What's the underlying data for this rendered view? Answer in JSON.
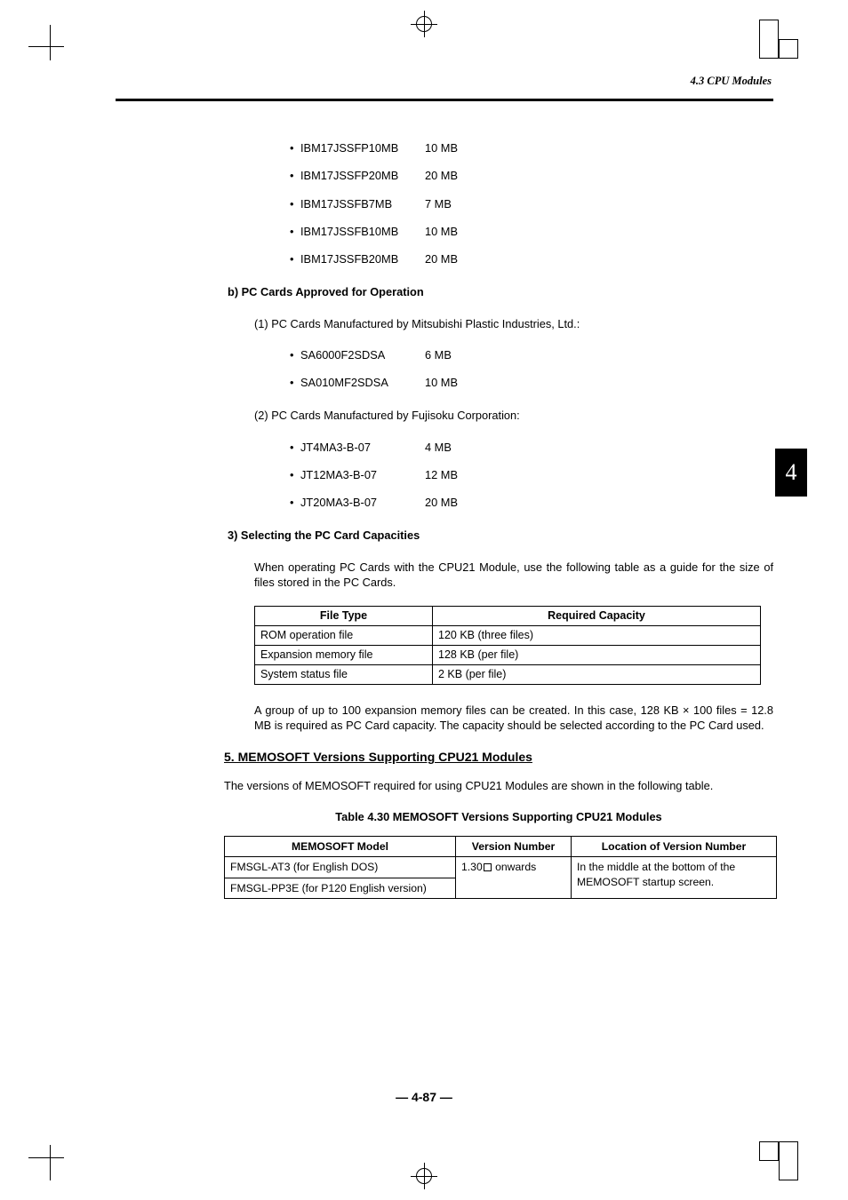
{
  "running_head": "4.3 CPU Modules",
  "side_tab": "4",
  "page_number": "— 4-87 —",
  "ibm_cards": [
    {
      "name": "IBM17JSSFP10MB",
      "size": "10 MB"
    },
    {
      "name": "IBM17JSSFP20MB",
      "size": "20 MB"
    },
    {
      "name": "IBM17JSSFB7MB",
      "size": "7 MB"
    },
    {
      "name": "IBM17JSSFB10MB",
      "size": "10 MB"
    },
    {
      "name": "IBM17JSSFB20MB",
      "size": "20 MB"
    }
  ],
  "section_b": "b)  PC Cards Approved for Operation",
  "b1_title": "(1)  PC Cards Manufactured by Mitsubishi Plastic Industries, Ltd.:",
  "b1_cards": [
    {
      "name": "SA6000F2SDSA",
      "size": "6 MB"
    },
    {
      "name": "SA010MF2SDSA",
      "size": "10 MB"
    }
  ],
  "b2_title": "(2)  PC Cards Manufactured by Fujisoku Corporation:",
  "b2_cards": [
    {
      "name": "JT4MA3-B-07",
      "size": "4 MB"
    },
    {
      "name": "JT12MA3-B-07",
      "size": "12 MB"
    },
    {
      "name": "JT20MA3-B-07",
      "size": "20 MB"
    }
  ],
  "section_3": "3)  Selecting the PC Card Capacities",
  "section_3_para": "When operating PC Cards with the CPU21 Module, use the following table as a guide for the size of files stored in the PC Cards.",
  "filetable": {
    "headers": [
      "File Type",
      "Required Capacity"
    ],
    "rows": [
      [
        "ROM operation file",
        "120 KB (three files)"
      ],
      [
        "Expansion memory file",
        "128 KB (per file)"
      ],
      [
        "System status file",
        "2 KB (per file)"
      ]
    ]
  },
  "note_para": "A group of up to 100 expansion memory files can be created. In this case, 128 KB × 100 files = 12.8 MB is required as PC Card capacity. The capacity should be selected according to the PC Card used.",
  "h5_title": "5.  MEMOSOFT Versions Supporting CPU21 Modules",
  "h5_para": "The versions of MEMOSOFT required for using CPU21 Modules are shown in the following table.",
  "memtable_caption": "Table 4.30 MEMOSOFT Versions Supporting CPU21 Modules",
  "memtable": {
    "headers": [
      "MEMOSOFT Model",
      "Version Number",
      "Location of Version Number"
    ],
    "rows": [
      {
        "model": "FMSGL-AT3 (for English DOS)",
        "version_prefix": "1.30",
        "version_suffix": " onwards"
      },
      {
        "model": "FMSGL-PP3E (for P120 English version)"
      }
    ],
    "location_text": "In the middle at the bottom of the MEMOSOFT startup screen."
  }
}
